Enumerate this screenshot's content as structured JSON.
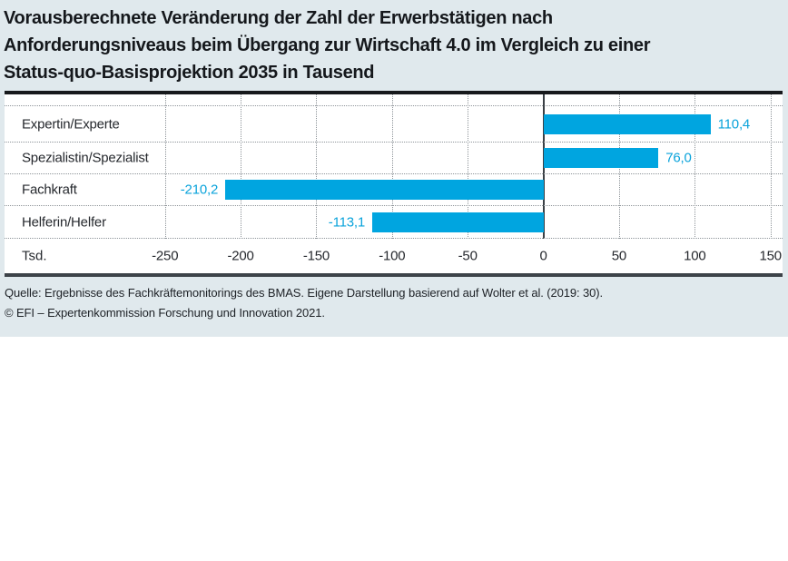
{
  "title": "Vorausberechnete Veränderung der Zahl der Erwerbstätigen nach\nAnforderungsniveaus beim Übergang zur Wirtschaft 4.0 im Vergleich zu einer\nStatus-quo-Basisprojektion 2035 in Tausend",
  "source": {
    "line1": "Quelle: Ergebnisse des Fachkräftemonitorings des BMAS. Eigene Darstellung basierend auf Wolter et al. (2019: 30).",
    "line2": "© EFI – Expertenkommission Forschung und Innovation 2021."
  },
  "chart_data": {
    "type": "bar",
    "orientation": "horizontal",
    "title": "Vorausberechnete Veränderung der Zahl der Erwerbstätigen nach Anforderungsniveaus beim Übergang zur Wirtschaft 4.0 im Vergleich zu einer Status-quo-Basisprojektion 2035 in Tausend",
    "categories": [
      "Expertin/Experte",
      "Spezialistin/Spezialist",
      "Fachkraft",
      "Helferin/Helfer"
    ],
    "values": [
      110.4,
      76.0,
      -210.2,
      -113.1
    ],
    "value_labels": [
      "110,4",
      "76,0",
      "-210,2",
      "-113,1"
    ],
    "unit_label": "Tsd.",
    "x_ticks": [
      -250,
      -200,
      -150,
      -100,
      -50,
      0,
      50,
      100,
      150
    ],
    "x_tick_labels": [
      "-250",
      "-200",
      "-150",
      "-100",
      "-50",
      "0",
      "50",
      "100",
      "150"
    ],
    "axis_range": [
      -356,
      158
    ],
    "grid": "dotted-vertical-and-row-separators",
    "legend": "none",
    "bar_color": "#00a5e0",
    "value_label_color": "#0aa3db",
    "zero_line": true
  }
}
